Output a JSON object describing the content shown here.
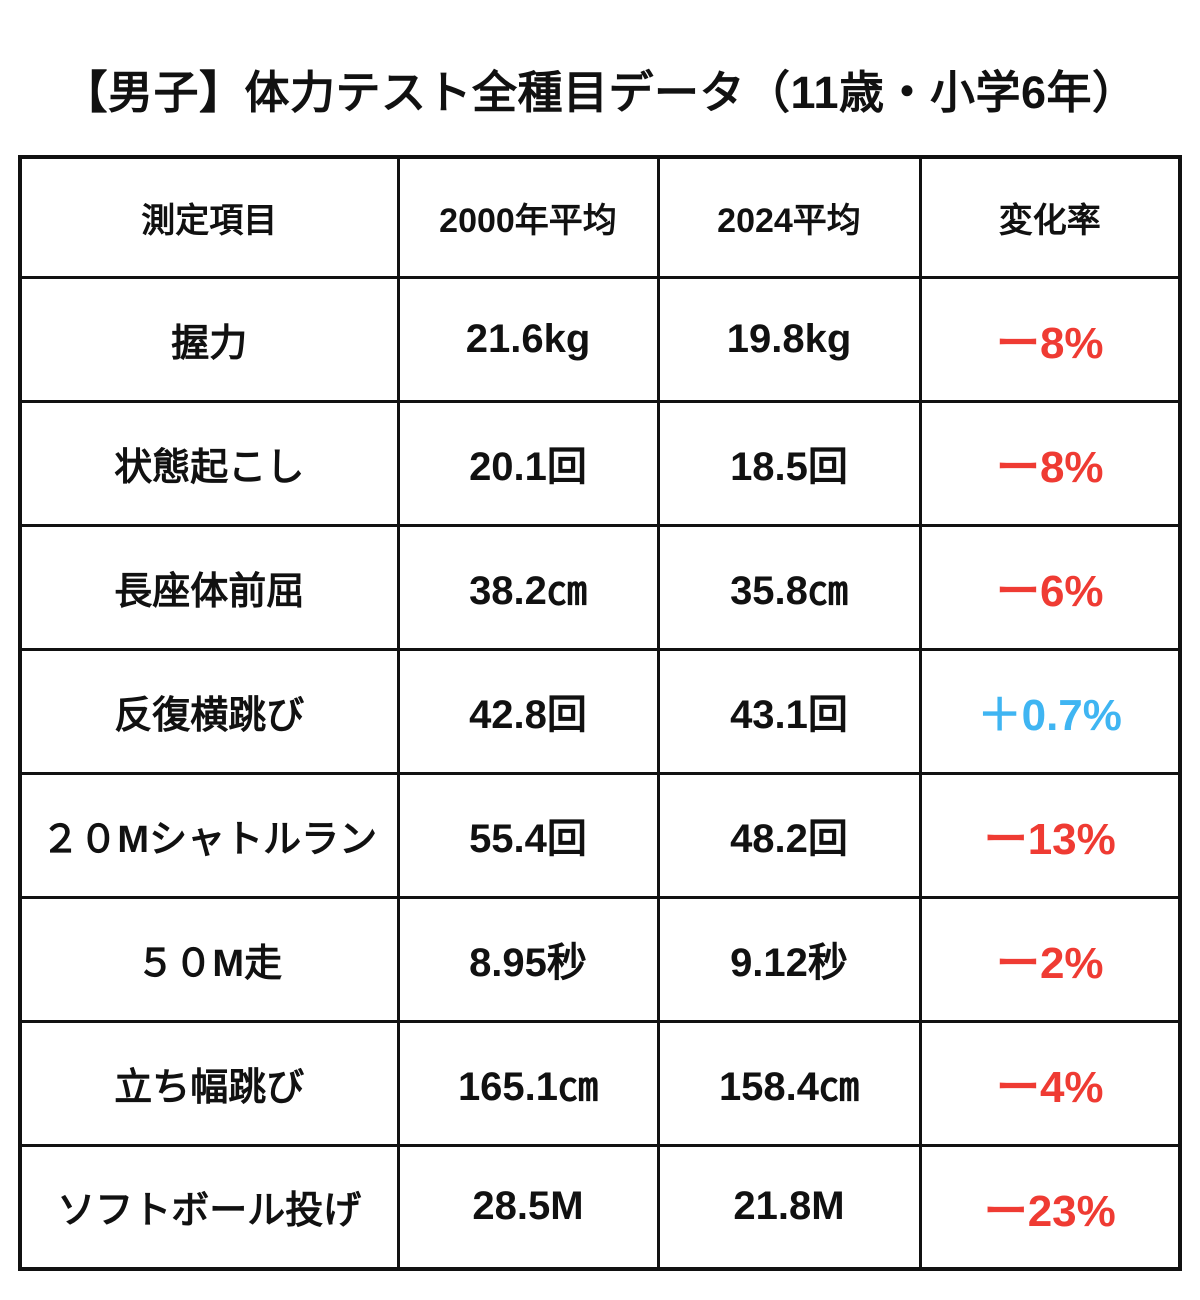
{
  "page": {
    "title": "【男子】体力テスト全種目データ（11歳・小学6年）",
    "background_color": "#ffffff",
    "colors": {
      "text": "#111111",
      "border": "#111111",
      "negative_change": "#ef3b33",
      "positive_change": "#3fb5f2"
    }
  },
  "table": {
    "headers": [
      "測定項目",
      "2000年平均",
      "2024平均",
      "変化率"
    ],
    "rows": [
      {
        "item": "握力",
        "y2000": "21.6kg",
        "y2024": "19.8kg",
        "change": "ー8%",
        "trend": "negative"
      },
      {
        "item": "状態起こし",
        "y2000": "20.1回",
        "y2024": "18.5回",
        "change": "ー8%",
        "trend": "negative"
      },
      {
        "item": "長座体前屈",
        "y2000": "38.2㎝",
        "y2024": "35.8㎝",
        "change": "ー6%",
        "trend": "negative"
      },
      {
        "item": "反復横跳び",
        "y2000": "42.8回",
        "y2024": "43.1回",
        "change": "＋0.7%",
        "trend": "positive"
      },
      {
        "item": "２０Mシャトルラン",
        "y2000": "55.4回",
        "y2024": "48.2回",
        "change": "ー13%",
        "trend": "negative"
      },
      {
        "item": "５０M走",
        "y2000": "8.95秒",
        "y2024": "9.12秒",
        "change": "ー2%",
        "trend": "negative"
      },
      {
        "item": "立ち幅跳び",
        "y2000": "165.1㎝",
        "y2024": "158.4㎝",
        "change": "ー4%",
        "trend": "negative"
      },
      {
        "item": "ソフトボール投げ",
        "y2000": "28.5M",
        "y2024": "21.8M",
        "change": "ー23%",
        "trend": "negative"
      }
    ]
  },
  "chart_data": {
    "type": "table",
    "title": "【男子】体力テスト全種目データ（11歳・小学6年）",
    "columns": [
      "測定項目",
      "2000年平均",
      "2024平均",
      "変化率"
    ],
    "rows": [
      [
        "握力",
        "21.6kg",
        "19.8kg",
        "ー8%"
      ],
      [
        "状態起こし",
        "20.1回",
        "18.5回",
        "ー8%"
      ],
      [
        "長座体前屈",
        "38.2㎝",
        "35.8㎝",
        "ー6%"
      ],
      [
        "反復横跳び",
        "42.8回",
        "43.1回",
        "＋0.7%"
      ],
      [
        "２０Mシャトルラン",
        "55.4回",
        "48.2回",
        "ー13%"
      ],
      [
        "５０M走",
        "8.95秒",
        "9.12秒",
        "ー2%"
      ],
      [
        "立ち幅跳び",
        "165.1㎝",
        "158.4㎝",
        "ー4%"
      ],
      [
        "ソフトボール投げ",
        "28.5M",
        "21.8M",
        "ー23%"
      ]
    ],
    "legend_position": "none",
    "notes": "Change-rate column: negative values shown in red, positive values shown in light blue"
  }
}
